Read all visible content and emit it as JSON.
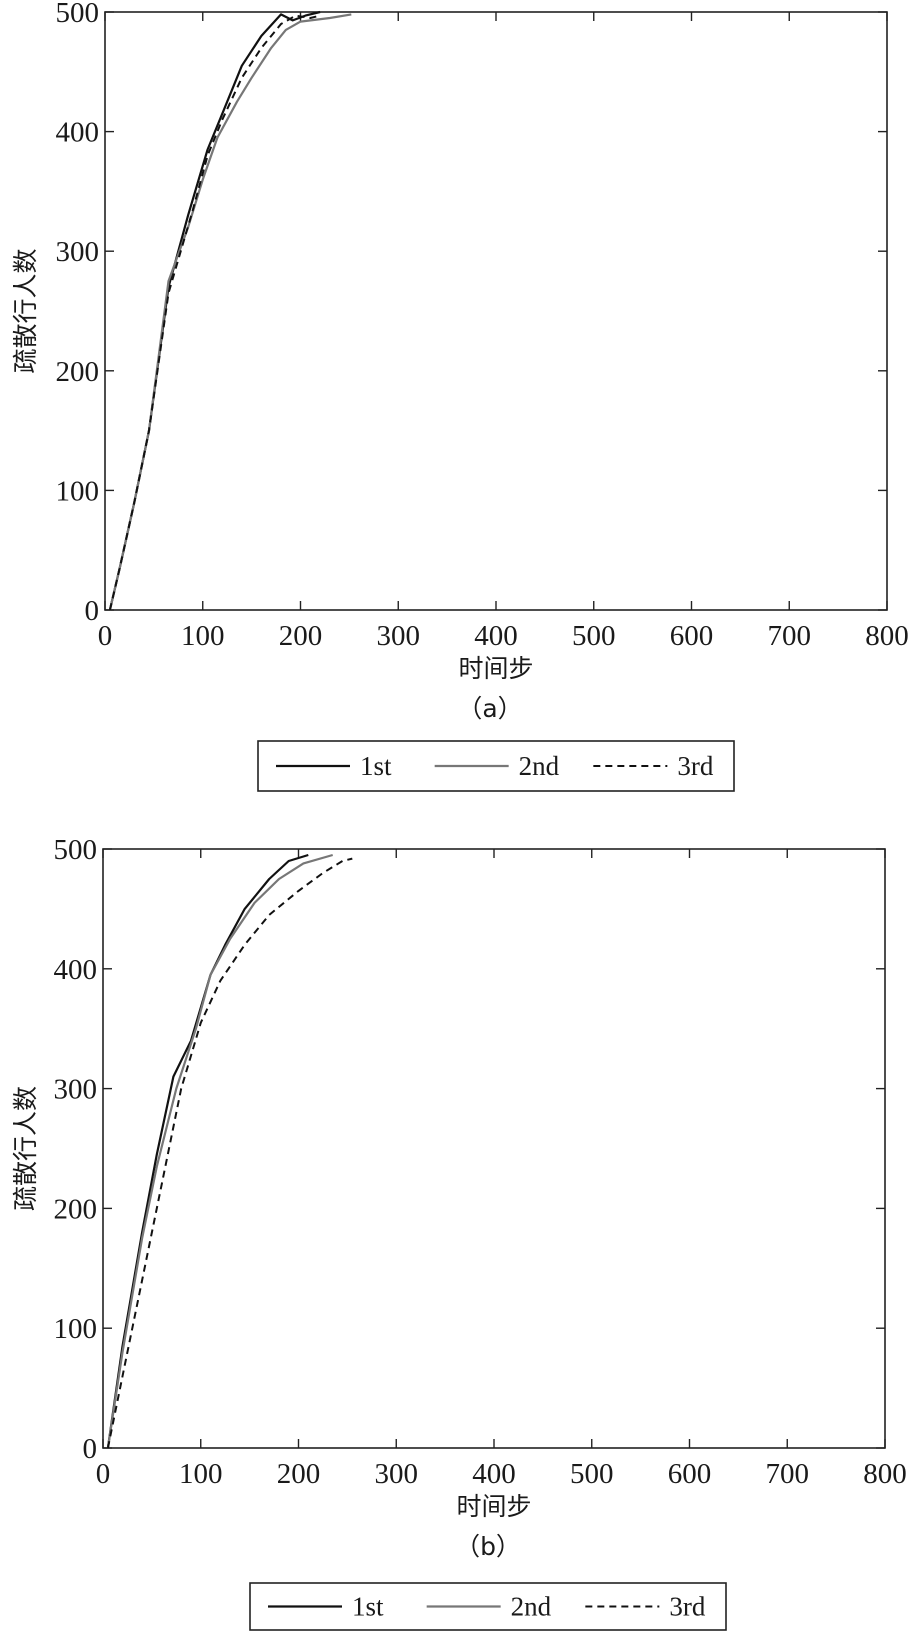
{
  "chart_data": [
    {
      "type": "line",
      "panel_label": "（a）",
      "xlabel": "时间步",
      "ylabel": "疏散行人数",
      "xlim": [
        0,
        800
      ],
      "ylim": [
        0,
        500
      ],
      "xticks": [
        0,
        100,
        200,
        300,
        400,
        500,
        600,
        700,
        800
      ],
      "yticks": [
        0,
        100,
        200,
        300,
        400,
        500
      ],
      "grid": false,
      "legend_position": "bottom",
      "series": [
        {
          "name": "1st",
          "color": "#111111",
          "dash": "",
          "width": 2.2,
          "points": [
            [
              5,
              0
            ],
            [
              15,
              35
            ],
            [
              30,
              90
            ],
            [
              45,
              150
            ],
            [
              65,
              270
            ],
            [
              85,
              330
            ],
            [
              105,
              385
            ],
            [
              120,
              415
            ],
            [
              140,
              455
            ],
            [
              160,
              480
            ],
            [
              180,
              498
            ],
            [
              192,
              493
            ],
            [
              205,
              497
            ],
            [
              220,
              500
            ]
          ]
        },
        {
          "name": "2nd",
          "color": "#777777",
          "dash": "",
          "width": 2.2,
          "points": [
            [
              5,
              0
            ],
            [
              15,
              35
            ],
            [
              30,
              90
            ],
            [
              45,
              150
            ],
            [
              65,
              275
            ],
            [
              85,
              320
            ],
            [
              100,
              360
            ],
            [
              115,
              395
            ],
            [
              135,
              425
            ],
            [
              150,
              445
            ],
            [
              170,
              470
            ],
            [
              185,
              485
            ],
            [
              200,
              492
            ],
            [
              230,
              495
            ],
            [
              252,
              498
            ]
          ]
        },
        {
          "name": "3rd",
          "color": "#111111",
          "dash": "7,5",
          "width": 2.0,
          "points": [
            [
              5,
              0
            ],
            [
              15,
              35
            ],
            [
              30,
              90
            ],
            [
              45,
              150
            ],
            [
              65,
              265
            ],
            [
              90,
              335
            ],
            [
              105,
              380
            ],
            [
              120,
              410
            ],
            [
              140,
              445
            ],
            [
              160,
              470
            ],
            [
              180,
              490
            ],
            [
              195,
              497
            ],
            [
              210,
              495
            ],
            [
              220,
              497
            ]
          ]
        }
      ]
    },
    {
      "type": "line",
      "panel_label": "（b）",
      "xlabel": "时间步",
      "ylabel": "疏散行人数",
      "xlim": [
        0,
        800
      ],
      "ylim": [
        0,
        500
      ],
      "xticks": [
        0,
        100,
        200,
        300,
        400,
        500,
        600,
        700,
        800
      ],
      "yticks": [
        0,
        100,
        200,
        300,
        400,
        500
      ],
      "grid": false,
      "legend_position": "bottom",
      "series": [
        {
          "name": "1st",
          "color": "#111111",
          "dash": "",
          "width": 2.2,
          "points": [
            [
              5,
              0
            ],
            [
              20,
              85
            ],
            [
              40,
              180
            ],
            [
              55,
              245
            ],
            [
              72,
              310
            ],
            [
              90,
              340
            ],
            [
              110,
              395
            ],
            [
              125,
              420
            ],
            [
              145,
              450
            ],
            [
              170,
              475
            ],
            [
              190,
              490
            ],
            [
              210,
              495
            ]
          ]
        },
        {
          "name": "2nd",
          "color": "#777777",
          "dash": "",
          "width": 2.2,
          "points": [
            [
              5,
              0
            ],
            [
              20,
              80
            ],
            [
              40,
              175
            ],
            [
              55,
              235
            ],
            [
              75,
              300
            ],
            [
              95,
              350
            ],
            [
              110,
              395
            ],
            [
              130,
              425
            ],
            [
              155,
              455
            ],
            [
              180,
              475
            ],
            [
              205,
              488
            ],
            [
              235,
              495
            ]
          ]
        },
        {
          "name": "3rd",
          "color": "#111111",
          "dash": "7,5",
          "width": 2.0,
          "points": [
            [
              5,
              0
            ],
            [
              25,
              80
            ],
            [
              45,
              160
            ],
            [
              60,
              220
            ],
            [
              80,
              300
            ],
            [
              100,
              355
            ],
            [
              120,
              390
            ],
            [
              145,
              420
            ],
            [
              170,
              445
            ],
            [
              200,
              465
            ],
            [
              225,
              480
            ],
            [
              245,
              490
            ],
            [
              255,
              492
            ]
          ]
        }
      ]
    }
  ]
}
